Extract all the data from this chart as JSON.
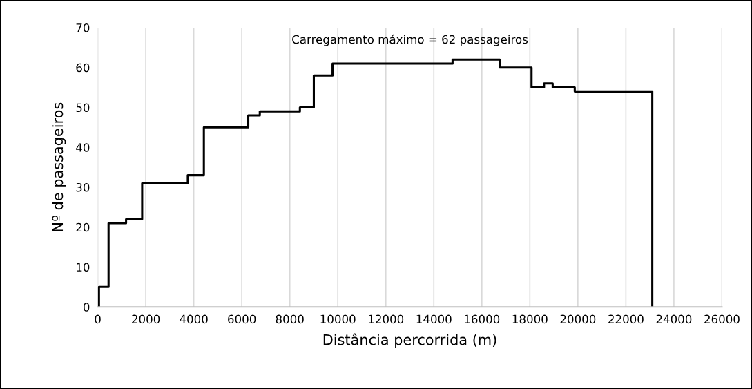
{
  "chart_data": {
    "type": "step",
    "xlabel": "Distância percorrida (m)",
    "ylabel": "Nº de passageiros",
    "annotations": [
      "Carregamento máximo = 62 passageiros"
    ],
    "series": [
      {
        "color": "#000000",
        "x": [
          50,
          50,
          450,
          1180,
          1850,
          3750,
          4420,
          6270,
          6750,
          8420,
          9000,
          9780,
          14780,
          16750,
          18070,
          18590,
          18950,
          19870,
          23100
        ],
        "values": [
          0,
          5,
          21,
          22,
          31,
          33,
          45,
          48,
          49,
          50,
          58,
          61,
          62,
          60,
          55,
          56,
          55,
          54,
          0
        ]
      }
    ],
    "xlim": [
      0,
      26000
    ],
    "xticks": [
      0,
      2000,
      4000,
      6000,
      8000,
      10000,
      12000,
      14000,
      16000,
      18000,
      20000,
      22000,
      24000,
      26000
    ],
    "ylim": [
      0,
      70
    ],
    "yticks": [
      0,
      10,
      20,
      30,
      40,
      50,
      60,
      70
    ],
    "grid": "x",
    "legend": false,
    "marker": "none",
    "line_style": "solid"
  }
}
